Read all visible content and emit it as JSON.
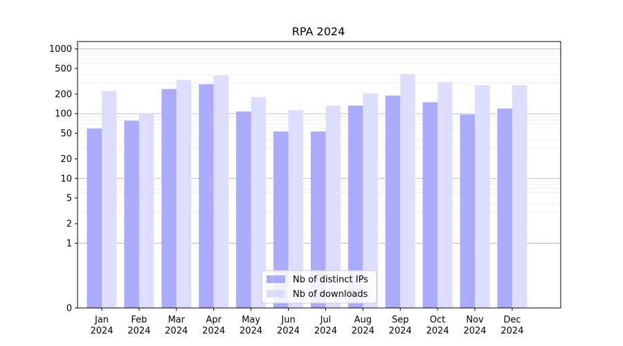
{
  "chart_data": {
    "type": "bar",
    "title": "RPA 2024",
    "xlabel": "",
    "ylabel": "",
    "yscale": "symlog",
    "ylim": [
      0,
      1300
    ],
    "y_ticks": [
      0,
      1,
      2,
      5,
      10,
      20,
      50,
      100,
      200,
      500,
      1000
    ],
    "y_tick_labels": [
      "0",
      "1",
      "2",
      "5",
      "10",
      "20",
      "50",
      "100",
      "200",
      "500",
      "1000"
    ],
    "categories": [
      {
        "month": "Jan",
        "year": "2024"
      },
      {
        "month": "Feb",
        "year": "2024"
      },
      {
        "month": "Mar",
        "year": "2024"
      },
      {
        "month": "Apr",
        "year": "2024"
      },
      {
        "month": "May",
        "year": "2024"
      },
      {
        "month": "Jun",
        "year": "2024"
      },
      {
        "month": "Jul",
        "year": "2024"
      },
      {
        "month": "Aug",
        "year": "2024"
      },
      {
        "month": "Sep",
        "year": "2024"
      },
      {
        "month": "Oct",
        "year": "2024"
      },
      {
        "month": "Nov",
        "year": "2024"
      },
      {
        "month": "Dec",
        "year": "2024"
      }
    ],
    "series": [
      {
        "name": "Nb of distinct IPs",
        "color": "#aaaaff",
        "values": [
          59,
          78,
          240,
          285,
          108,
          53,
          53,
          133,
          190,
          150,
          97,
          120
        ]
      },
      {
        "name": "Nb of downloads",
        "color": "#ddddff",
        "values": [
          225,
          100,
          330,
          390,
          180,
          113,
          133,
          205,
          410,
          310,
          275,
          275
        ]
      }
    ],
    "grid": true,
    "legend_position": "bottom-center"
  }
}
